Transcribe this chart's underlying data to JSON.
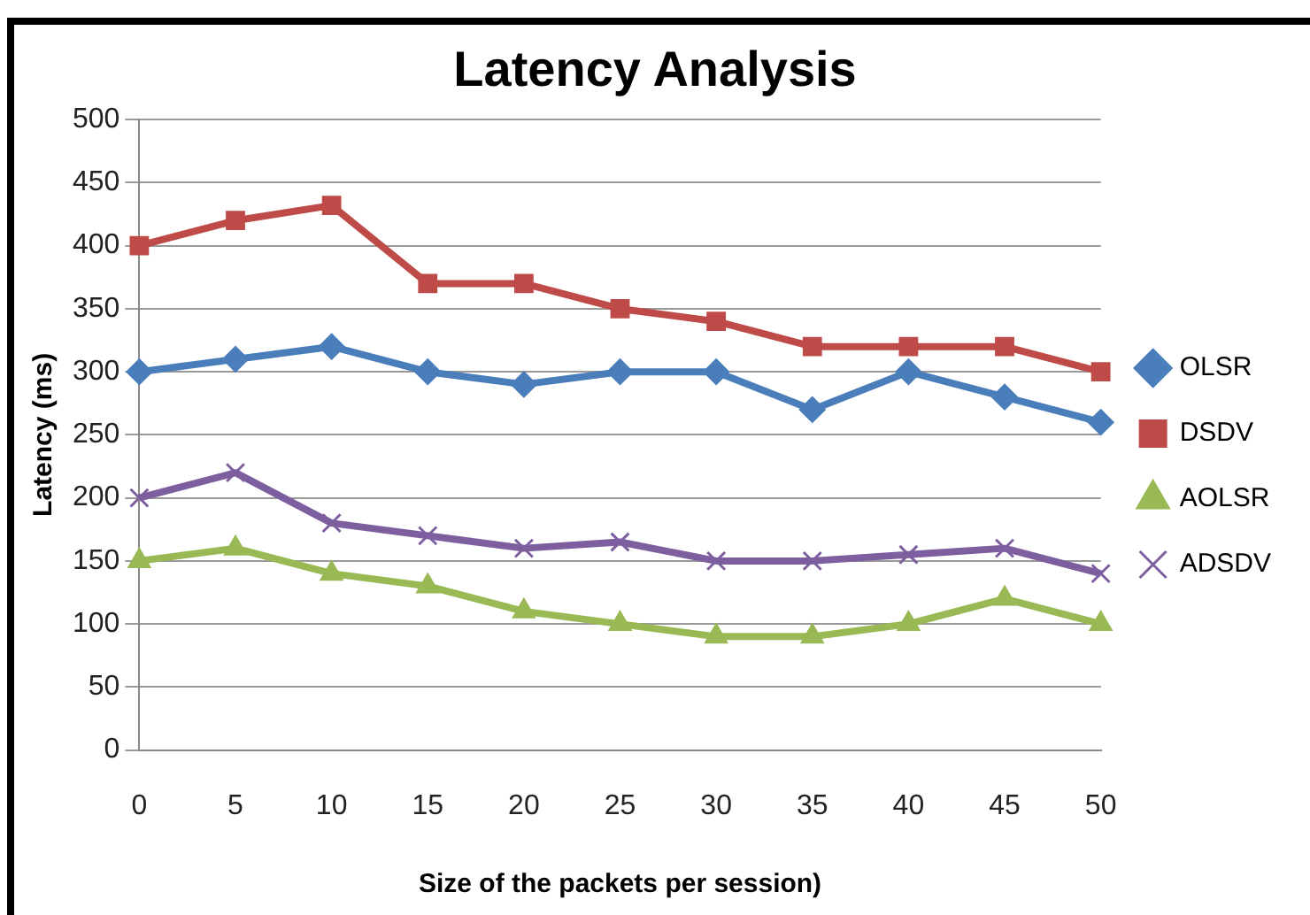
{
  "chart_data": {
    "type": "line",
    "title": "Latency Analysis",
    "xlabel": "Size of the packets per session)",
    "ylabel": "Latency (ms)",
    "categories": [
      "0",
      "5",
      "10",
      "15",
      "20",
      "25",
      "30",
      "35",
      "40",
      "45",
      "50"
    ],
    "ylim": [
      0,
      500
    ],
    "yticks": [
      0,
      50,
      100,
      150,
      200,
      250,
      300,
      350,
      400,
      450,
      500
    ],
    "grid": "y",
    "legend": "right",
    "series": [
      {
        "name": "OLSR",
        "color": "#4a7ebb",
        "marker": "diamond",
        "values": [
          300,
          310,
          320,
          300,
          290,
          300,
          300,
          270,
          300,
          280,
          260
        ]
      },
      {
        "name": "DSDV",
        "color": "#be4b48",
        "marker": "square",
        "values": [
          400,
          420,
          432,
          370,
          370,
          350,
          340,
          320,
          320,
          320,
          300
        ]
      },
      {
        "name": "AOLSR",
        "color": "#98b954",
        "marker": "triangle",
        "values": [
          150,
          160,
          140,
          130,
          110,
          100,
          90,
          90,
          100,
          120,
          100
        ]
      },
      {
        "name": "ADSDV",
        "color": "#7d5fa0",
        "marker": "cross",
        "values": [
          200,
          220,
          180,
          170,
          160,
          165,
          150,
          150,
          155,
          160,
          140
        ]
      }
    ]
  }
}
